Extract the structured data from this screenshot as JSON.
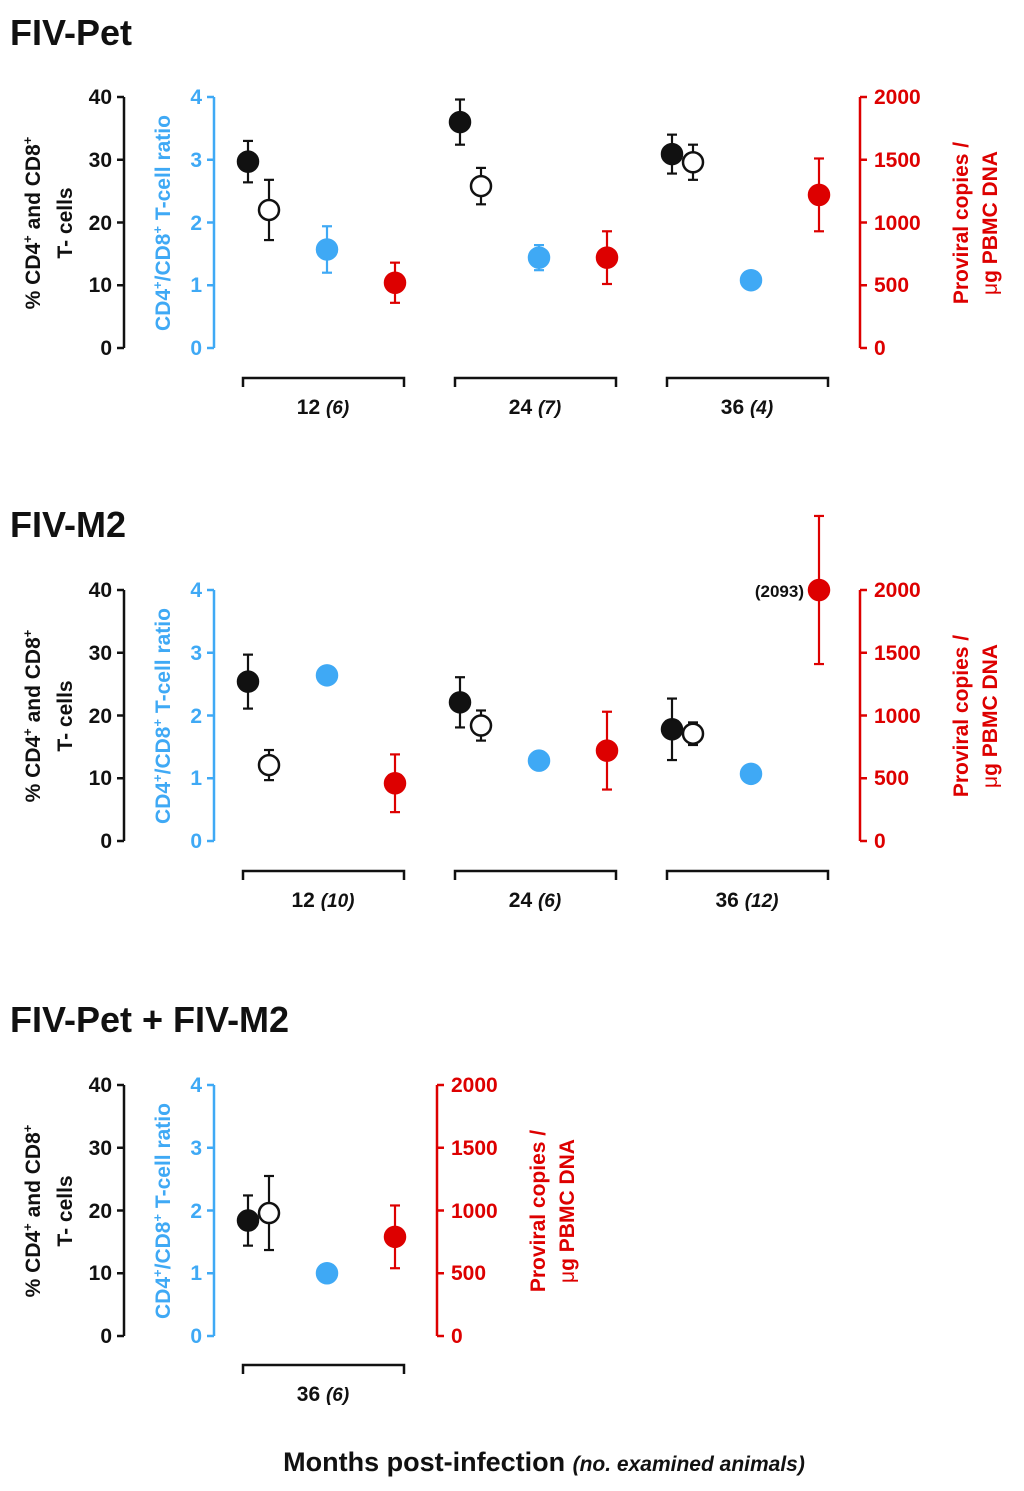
{
  "colors": {
    "black": "#111111",
    "ratio_blue": "#3fa9f5",
    "proviral_red": "#dd0000"
  },
  "axis_labels": {
    "pct_line1": "% CD4",
    "pct_sup1": "+",
    "pct_and": " and CD8",
    "pct_sup2": "+",
    "pct_line2": "T- cells",
    "ratio_a": "CD4",
    "ratio_sup1": "+",
    "ratio_b": "/CD8",
    "ratio_sup2": "+",
    "ratio_c": " T-cell ratio",
    "proviral_line1": "Proviral copies /",
    "proviral_mu": "μ",
    "proviral_line2": "g PBMC DNA"
  },
  "x_axis_title": {
    "main": "Months post-infection ",
    "italic": "(no. examined animals)"
  },
  "chart_data": [
    {
      "type": "scatter",
      "title": "FIV-Pet",
      "ylim_percent": [
        0,
        40
      ],
      "ylim_ratio": [
        0,
        4
      ],
      "ylim_proviral": [
        0,
        2000
      ],
      "percent_ticks": [
        "0",
        "10",
        "20",
        "30",
        "40"
      ],
      "ratio_ticks": [
        "0",
        "1",
        "2",
        "3",
        "4"
      ],
      "proviral_ticks": [
        "0",
        "500",
        "1000",
        "1500",
        "2000"
      ],
      "groups": [
        {
          "month": "12",
          "n": "(6)",
          "cd4": [
            29.7,
            3.3
          ],
          "cd8": [
            22,
            4.8
          ],
          "ratio": [
            1.57,
            0.37
          ],
          "proviral": [
            520,
            160
          ]
        },
        {
          "month": "24",
          "n": "(7)",
          "cd4": [
            36,
            3.6
          ],
          "cd8": [
            25.8,
            2.9
          ],
          "ratio": [
            1.44,
            0.2
          ],
          "proviral": [
            720,
            210
          ]
        },
        {
          "month": "36",
          "n": "(4)",
          "cd4": [
            30.9,
            3.1
          ],
          "cd8": [
            29.6,
            2.8
          ],
          "ratio": [
            1.08,
            0.03
          ],
          "proviral": [
            1220,
            290
          ]
        }
      ]
    },
    {
      "type": "scatter",
      "title": "FIV-M2",
      "ylim_percent": [
        0,
        40
      ],
      "ylim_ratio": [
        0,
        4
      ],
      "ylim_proviral": [
        0,
        2000
      ],
      "percent_ticks": [
        "0",
        "10",
        "20",
        "30",
        "40"
      ],
      "ratio_ticks": [
        "0",
        "1",
        "2",
        "3",
        "4"
      ],
      "proviral_ticks": [
        "0",
        "500",
        "1000",
        "1500",
        "2000"
      ],
      "annotation": "(2093)",
      "groups": [
        {
          "month": "12",
          "n": "(10)",
          "cd4": [
            25.4,
            4.3
          ],
          "cd8": [
            12.1,
            2.4
          ],
          "ratio": [
            2.64,
            0.03
          ],
          "proviral": [
            460,
            230
          ]
        },
        {
          "month": "24",
          "n": "(6)",
          "cd4": [
            22.1,
            4.0
          ],
          "cd8": [
            18.4,
            2.4
          ],
          "ratio": [
            1.28,
            0.03
          ],
          "proviral": [
            720,
            310
          ]
        },
        {
          "month": "36",
          "n": "(12)",
          "cd4": [
            17.8,
            4.9
          ],
          "cd8": [
            17.1,
            1.8
          ],
          "ratio": [
            1.07,
            0.03
          ],
          "proviral": [
            2000,
            590
          ]
        }
      ]
    },
    {
      "type": "scatter",
      "title": "FIV-Pet + FIV-M2",
      "ylim_percent": [
        0,
        40
      ],
      "ylim_ratio": [
        0,
        4
      ],
      "ylim_proviral": [
        0,
        2000
      ],
      "percent_ticks": [
        "0",
        "10",
        "20",
        "30",
        "40"
      ],
      "ratio_ticks": [
        "0",
        "1",
        "2",
        "3",
        "4"
      ],
      "proviral_ticks": [
        "0",
        "500",
        "1000",
        "1500",
        "2000"
      ],
      "groups": [
        {
          "month": "36",
          "n": "(6)",
          "cd4": [
            18.4,
            4.0
          ],
          "cd8": [
            19.6,
            5.9
          ],
          "ratio": [
            1.0,
            0.03
          ],
          "proviral": [
            790,
            250
          ]
        }
      ]
    }
  ]
}
